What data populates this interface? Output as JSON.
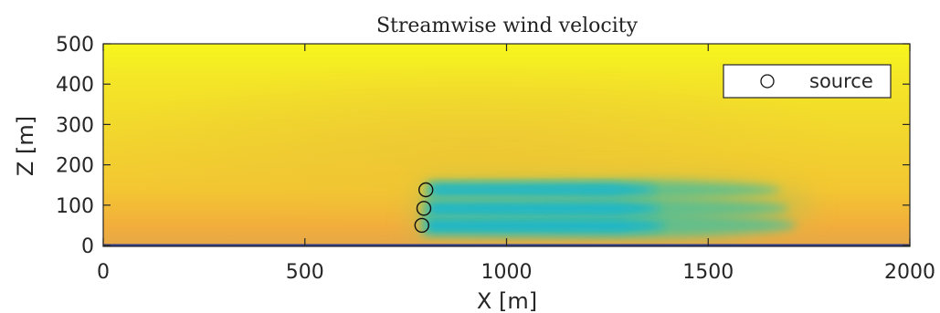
{
  "chart_data": {
    "type": "heatmap",
    "title": "Streamwise wind velocity",
    "xlabel": "X [m]",
    "ylabel": "Z [m]",
    "xlim": [
      0,
      2000
    ],
    "ylim": [
      0,
      500
    ],
    "xticks": [
      0,
      500,
      1000,
      1500,
      2000
    ],
    "xtick_labels": [
      "0",
      "500",
      "1000",
      "1500",
      "2000"
    ],
    "yticks": [
      0,
      100,
      200,
      300,
      400,
      500
    ],
    "ytick_labels": [
      "0",
      "100",
      "200",
      "300",
      "400",
      "500"
    ],
    "colormap": [
      "#0fb4d3",
      "#3fbf8a",
      "#a3c24d",
      "#f4ae3c",
      "#f0cf2d",
      "#f7f71c"
    ],
    "grid": false,
    "legend": {
      "placement": "top-right",
      "entries": [
        {
          "label": "source",
          "marker": "open-circle"
        }
      ]
    },
    "sources": [
      {
        "x": 790,
        "z": 50
      },
      {
        "x": 795,
        "z": 92
      },
      {
        "x": 800,
        "z": 138
      }
    ],
    "wake_low_velocity_regions": [
      {
        "x_start": 790,
        "x_end": 1720,
        "z_center": 50
      },
      {
        "x_start": 795,
        "x_end": 1700,
        "z_center": 92
      },
      {
        "x_start": 800,
        "x_end": 1680,
        "z_center": 138
      }
    ]
  }
}
